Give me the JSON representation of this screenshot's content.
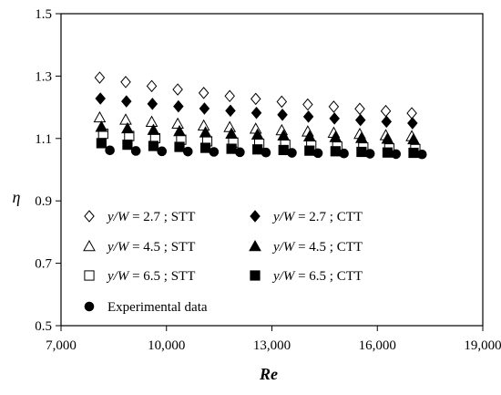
{
  "chart_data": {
    "type": "scatter",
    "xlabel": "Re",
    "ylabel": "η",
    "xlim": [
      7000,
      19000
    ],
    "ylim": [
      0.5,
      1.5
    ],
    "x_ticks": [
      7000,
      10000,
      13000,
      16000,
      19000
    ],
    "x_tick_labels": [
      "7,000",
      "10,000",
      "13,000",
      "16,000",
      "19,000"
    ],
    "y_ticks": [
      0.5,
      0.7,
      0.9,
      1.1,
      1.3,
      1.5
    ],
    "y_tick_labels": [
      "0.5",
      "0.7",
      "0.9",
      "1.1",
      "1.3",
      "1.5"
    ],
    "grid": false,
    "legend_position": "lower-left inside plot",
    "series": [
      {
        "name": "y/W = 2.7 ; STT",
        "marker": "diamond-open",
        "color": "#000000",
        "x": [
          8100,
          8840,
          9580,
          10320,
          11060,
          11800,
          12540,
          13280,
          14020,
          14760,
          15500,
          16240,
          16980
        ],
        "y": [
          1.295,
          1.281,
          1.268,
          1.257,
          1.246,
          1.236,
          1.227,
          1.218,
          1.209,
          1.202,
          1.195,
          1.188,
          1.181
        ]
      },
      {
        "name": "y/W = 4.5 ; STT",
        "marker": "triangle-open",
        "color": "#000000",
        "x": [
          8100,
          8840,
          9580,
          10320,
          11060,
          11800,
          12540,
          13280,
          14020,
          14760,
          15500,
          16240,
          16980
        ],
        "y": [
          1.167,
          1.16,
          1.153,
          1.147,
          1.141,
          1.136,
          1.131,
          1.126,
          1.122,
          1.118,
          1.114,
          1.11,
          1.107
        ]
      },
      {
        "name": "y/W = 6.5 ; STT",
        "marker": "square-open",
        "color": "#000000",
        "x": [
          8200,
          8940,
          9680,
          10420,
          11160,
          11900,
          12640,
          13380,
          14120,
          14860,
          15600,
          16340,
          17080
        ],
        "y": [
          1.115,
          1.108,
          1.101,
          1.096,
          1.091,
          1.087,
          1.083,
          1.08,
          1.077,
          1.074,
          1.071,
          1.068,
          1.066
        ]
      },
      {
        "name": "y/W = 2.7 ; CTT",
        "marker": "diamond-filled",
        "color": "#000000",
        "x": [
          8120,
          8860,
          9600,
          10340,
          11080,
          11820,
          12560,
          13300,
          14040,
          14780,
          15520,
          16260,
          17000
        ],
        "y": [
          1.228,
          1.219,
          1.211,
          1.203,
          1.196,
          1.189,
          1.182,
          1.176,
          1.17,
          1.164,
          1.159,
          1.154,
          1.149
        ]
      },
      {
        "name": "y/W = 4.5 ; CTT",
        "marker": "triangle-filled",
        "color": "#000000",
        "x": [
          8150,
          8890,
          9630,
          10370,
          11110,
          11850,
          12590,
          13330,
          14070,
          14810,
          15550,
          16290,
          17030
        ],
        "y": [
          1.137,
          1.132,
          1.127,
          1.123,
          1.119,
          1.115,
          1.112,
          1.109,
          1.106,
          1.104,
          1.101,
          1.099,
          1.097
        ]
      },
      {
        "name": "y/W = 6.5 ; CTT",
        "marker": "square-filled",
        "color": "#000000",
        "x": [
          8150,
          8890,
          9630,
          10370,
          11110,
          11850,
          12590,
          13330,
          14070,
          14810,
          15550,
          16290,
          17030
        ],
        "y": [
          1.085,
          1.08,
          1.076,
          1.073,
          1.07,
          1.067,
          1.065,
          1.063,
          1.061,
          1.059,
          1.057,
          1.055,
          1.054
        ]
      },
      {
        "name": "Experimental data",
        "marker": "circle-filled",
        "color": "#000000",
        "x": [
          8390,
          9130,
          9870,
          10610,
          11350,
          12090,
          12830,
          13570,
          14310,
          15050,
          15790,
          16530,
          17270
        ],
        "y": [
          1.062,
          1.06,
          1.059,
          1.058,
          1.057,
          1.056,
          1.055,
          1.054,
          1.053,
          1.052,
          1.051,
          1.05,
          1.049
        ]
      }
    ],
    "legend_entries": [
      {
        "marker": "diamond-open",
        "var": "y/W",
        "rest": " = 2.7 ;  STT"
      },
      {
        "marker": "triangle-open",
        "var": "y/W",
        "rest": " = 4.5 ;  STT"
      },
      {
        "marker": "square-open",
        "var": "y/W",
        "rest": " = 6.5 ;  STT"
      },
      {
        "marker": "circle-filled",
        "var": "",
        "rest": "Experimental data"
      },
      {
        "marker": "diamond-filled",
        "var": "y/W",
        "rest": " = 2.7 ;  CTT"
      },
      {
        "marker": "triangle-filled",
        "var": "y/W",
        "rest": " = 4.5 ;  CTT"
      },
      {
        "marker": "square-filled",
        "var": "y/W",
        "rest": " = 6.5 ;  CTT"
      }
    ]
  }
}
